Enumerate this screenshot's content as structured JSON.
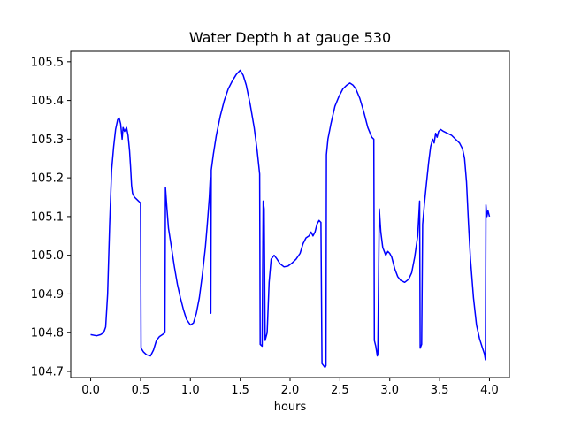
{
  "chart_data": {
    "type": "line",
    "title": "Water Depth h at gauge 530",
    "xlabel": "hours",
    "ylabel": "",
    "grid": false,
    "legend": null,
    "xlim": [
      -0.2,
      4.2
    ],
    "ylim": [
      104.684,
      105.527
    ],
    "x_ticks": [
      0.0,
      0.5,
      1.0,
      1.5,
      2.0,
      2.5,
      3.0,
      3.5,
      4.0
    ],
    "x_tick_labels": [
      "0.0",
      "0.5",
      "1.0",
      "1.5",
      "2.0",
      "2.5",
      "3.0",
      "3.5",
      "4.0"
    ],
    "y_ticks": [
      104.7,
      104.8,
      104.9,
      105.0,
      105.1,
      105.2,
      105.3,
      105.4,
      105.5
    ],
    "y_tick_labels": [
      "104.7",
      "104.8",
      "104.9",
      "105.0",
      "105.1",
      "105.2",
      "105.3",
      "105.4",
      "105.5"
    ],
    "series": [
      {
        "name": "h",
        "color": "#0000ff",
        "points": [
          [
            0.0,
            104.795
          ],
          [
            0.06,
            104.792
          ],
          [
            0.1,
            104.795
          ],
          [
            0.13,
            104.8
          ],
          [
            0.15,
            104.815
          ],
          [
            0.17,
            104.9
          ],
          [
            0.19,
            105.08
          ],
          [
            0.21,
            105.22
          ],
          [
            0.23,
            105.28
          ],
          [
            0.25,
            105.325
          ],
          [
            0.27,
            105.35
          ],
          [
            0.285,
            105.355
          ],
          [
            0.3,
            105.34
          ],
          [
            0.315,
            105.3
          ],
          [
            0.325,
            105.33
          ],
          [
            0.34,
            105.32
          ],
          [
            0.36,
            105.33
          ],
          [
            0.375,
            105.31
          ],
          [
            0.39,
            105.27
          ],
          [
            0.4,
            105.23
          ],
          [
            0.41,
            105.18
          ],
          [
            0.42,
            105.16
          ],
          [
            0.44,
            105.15
          ],
          [
            0.46,
            105.145
          ],
          [
            0.48,
            105.14
          ],
          [
            0.5,
            105.135
          ],
          [
            0.505,
            104.76
          ],
          [
            0.53,
            104.75
          ],
          [
            0.56,
            104.743
          ],
          [
            0.6,
            104.74
          ],
          [
            0.63,
            104.755
          ],
          [
            0.66,
            104.78
          ],
          [
            0.69,
            104.79
          ],
          [
            0.72,
            104.795
          ],
          [
            0.745,
            104.8
          ],
          [
            0.75,
            105.175
          ],
          [
            0.765,
            105.12
          ],
          [
            0.78,
            105.07
          ],
          [
            0.81,
            105.02
          ],
          [
            0.84,
            104.97
          ],
          [
            0.87,
            104.925
          ],
          [
            0.9,
            104.89
          ],
          [
            0.93,
            104.86
          ],
          [
            0.96,
            104.835
          ],
          [
            1.0,
            104.82
          ],
          [
            1.03,
            104.825
          ],
          [
            1.06,
            104.85
          ],
          [
            1.09,
            104.89
          ],
          [
            1.12,
            104.95
          ],
          [
            1.15,
            105.02
          ],
          [
            1.17,
            105.08
          ],
          [
            1.19,
            105.15
          ],
          [
            1.2,
            105.2
          ],
          [
            1.205,
            104.85
          ],
          [
            1.21,
            105.22
          ],
          [
            1.23,
            105.26
          ],
          [
            1.26,
            105.31
          ],
          [
            1.3,
            105.36
          ],
          [
            1.34,
            105.4
          ],
          [
            1.38,
            105.43
          ],
          [
            1.42,
            105.45
          ],
          [
            1.46,
            105.467
          ],
          [
            1.5,
            105.478
          ],
          [
            1.53,
            105.465
          ],
          [
            1.56,
            105.44
          ],
          [
            1.6,
            105.39
          ],
          [
            1.64,
            105.33
          ],
          [
            1.67,
            105.27
          ],
          [
            1.695,
            105.21
          ],
          [
            1.7,
            104.77
          ],
          [
            1.72,
            104.765
          ],
          [
            1.73,
            105.14
          ],
          [
            1.74,
            105.12
          ],
          [
            1.75,
            104.78
          ],
          [
            1.77,
            104.8
          ],
          [
            1.79,
            104.93
          ],
          [
            1.81,
            104.99
          ],
          [
            1.84,
            105.0
          ],
          [
            1.87,
            104.99
          ],
          [
            1.9,
            104.978
          ],
          [
            1.94,
            104.97
          ],
          [
            1.98,
            104.972
          ],
          [
            2.02,
            104.98
          ],
          [
            2.06,
            104.99
          ],
          [
            2.1,
            105.005
          ],
          [
            2.13,
            105.03
          ],
          [
            2.16,
            105.045
          ],
          [
            2.19,
            105.05
          ],
          [
            2.21,
            105.06
          ],
          [
            2.23,
            105.05
          ],
          [
            2.25,
            105.06
          ],
          [
            2.27,
            105.08
          ],
          [
            2.29,
            105.09
          ],
          [
            2.31,
            105.085
          ],
          [
            2.32,
            104.72
          ],
          [
            2.35,
            104.71
          ],
          [
            2.36,
            104.715
          ],
          [
            2.365,
            105.26
          ],
          [
            2.38,
            105.3
          ],
          [
            2.41,
            105.34
          ],
          [
            2.45,
            105.385
          ],
          [
            2.49,
            105.41
          ],
          [
            2.53,
            105.43
          ],
          [
            2.57,
            105.44
          ],
          [
            2.6,
            105.445
          ],
          [
            2.63,
            105.44
          ],
          [
            2.66,
            105.43
          ],
          [
            2.7,
            105.405
          ],
          [
            2.74,
            105.37
          ],
          [
            2.78,
            105.33
          ],
          [
            2.82,
            105.305
          ],
          [
            2.84,
            105.3
          ],
          [
            2.845,
            104.78
          ],
          [
            2.86,
            104.765
          ],
          [
            2.875,
            104.74
          ],
          [
            2.88,
            104.745
          ],
          [
            2.895,
            105.12
          ],
          [
            2.91,
            105.06
          ],
          [
            2.93,
            105.02
          ],
          [
            2.96,
            105.0
          ],
          [
            2.98,
            105.01
          ],
          [
            3.0,
            105.005
          ],
          [
            3.02,
            104.995
          ],
          [
            3.05,
            104.965
          ],
          [
            3.08,
            104.945
          ],
          [
            3.11,
            104.935
          ],
          [
            3.15,
            104.93
          ],
          [
            3.19,
            104.938
          ],
          [
            3.22,
            104.955
          ],
          [
            3.25,
            104.995
          ],
          [
            3.28,
            105.05
          ],
          [
            3.3,
            105.14
          ],
          [
            3.305,
            104.76
          ],
          [
            3.32,
            104.77
          ],
          [
            3.33,
            105.08
          ],
          [
            3.35,
            105.14
          ],
          [
            3.37,
            105.19
          ],
          [
            3.39,
            105.24
          ],
          [
            3.41,
            105.28
          ],
          [
            3.43,
            105.3
          ],
          [
            3.445,
            105.29
          ],
          [
            3.46,
            105.315
          ],
          [
            3.475,
            105.305
          ],
          [
            3.49,
            105.32
          ],
          [
            3.51,
            105.325
          ],
          [
            3.54,
            105.32
          ],
          [
            3.58,
            105.315
          ],
          [
            3.62,
            105.31
          ],
          [
            3.66,
            105.3
          ],
          [
            3.7,
            105.29
          ],
          [
            3.73,
            105.275
          ],
          [
            3.75,
            105.25
          ],
          [
            3.77,
            105.19
          ],
          [
            3.79,
            105.08
          ],
          [
            3.81,
            104.99
          ],
          [
            3.84,
            104.89
          ],
          [
            3.87,
            104.82
          ],
          [
            3.9,
            104.785
          ],
          [
            3.93,
            104.76
          ],
          [
            3.95,
            104.745
          ],
          [
            3.96,
            104.73
          ],
          [
            3.965,
            105.13
          ],
          [
            3.975,
            105.1
          ],
          [
            3.985,
            105.115
          ],
          [
            4.0,
            105.1
          ]
        ]
      }
    ]
  }
}
